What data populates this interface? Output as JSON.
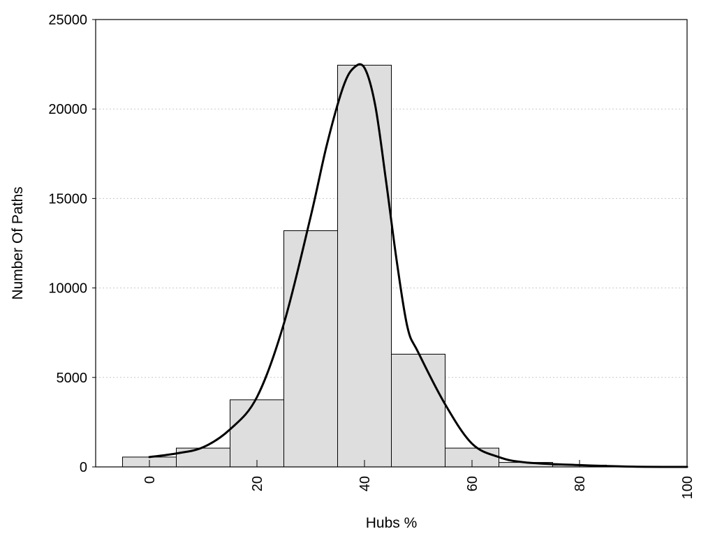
{
  "chart_data": {
    "type": "bar",
    "xlabel": "Hubs %",
    "ylabel": "Number Of Paths",
    "xlim": [
      -10,
      100
    ],
    "ylim": [
      0,
      25000
    ],
    "x_ticks": [
      0,
      20,
      40,
      60,
      80,
      100
    ],
    "y_ticks": [
      0,
      5000,
      10000,
      15000,
      20000,
      25000
    ],
    "grid": "horizontal dotted",
    "bin_width": 10,
    "bars": [
      {
        "x": 0,
        "value": 550
      },
      {
        "x": 10,
        "value": 1050
      },
      {
        "x": 20,
        "value": 3750
      },
      {
        "x": 30,
        "value": 13200
      },
      {
        "x": 40,
        "value": 22450
      },
      {
        "x": 50,
        "value": 6300
      },
      {
        "x": 60,
        "value": 1050
      },
      {
        "x": 70,
        "value": 250
      },
      {
        "x": 80,
        "value": 100
      },
      {
        "x": 90,
        "value": 20
      }
    ],
    "series": [
      {
        "type": "line",
        "x": [
          0,
          5,
          10,
          15,
          20,
          25,
          30,
          33,
          36,
          38,
          40,
          42,
          44,
          46,
          48,
          50,
          55,
          60,
          65,
          70,
          80,
          90,
          100
        ],
        "values": [
          550,
          750,
          1100,
          2100,
          3900,
          8000,
          14000,
          18000,
          21200,
          22300,
          22300,
          20200,
          16000,
          11500,
          7800,
          6400,
          3500,
          1300,
          550,
          250,
          100,
          15,
          0
        ]
      }
    ],
    "colors": {
      "bar_fill": "#dedede",
      "bar_stroke": "#000000",
      "line": "#000000"
    }
  }
}
